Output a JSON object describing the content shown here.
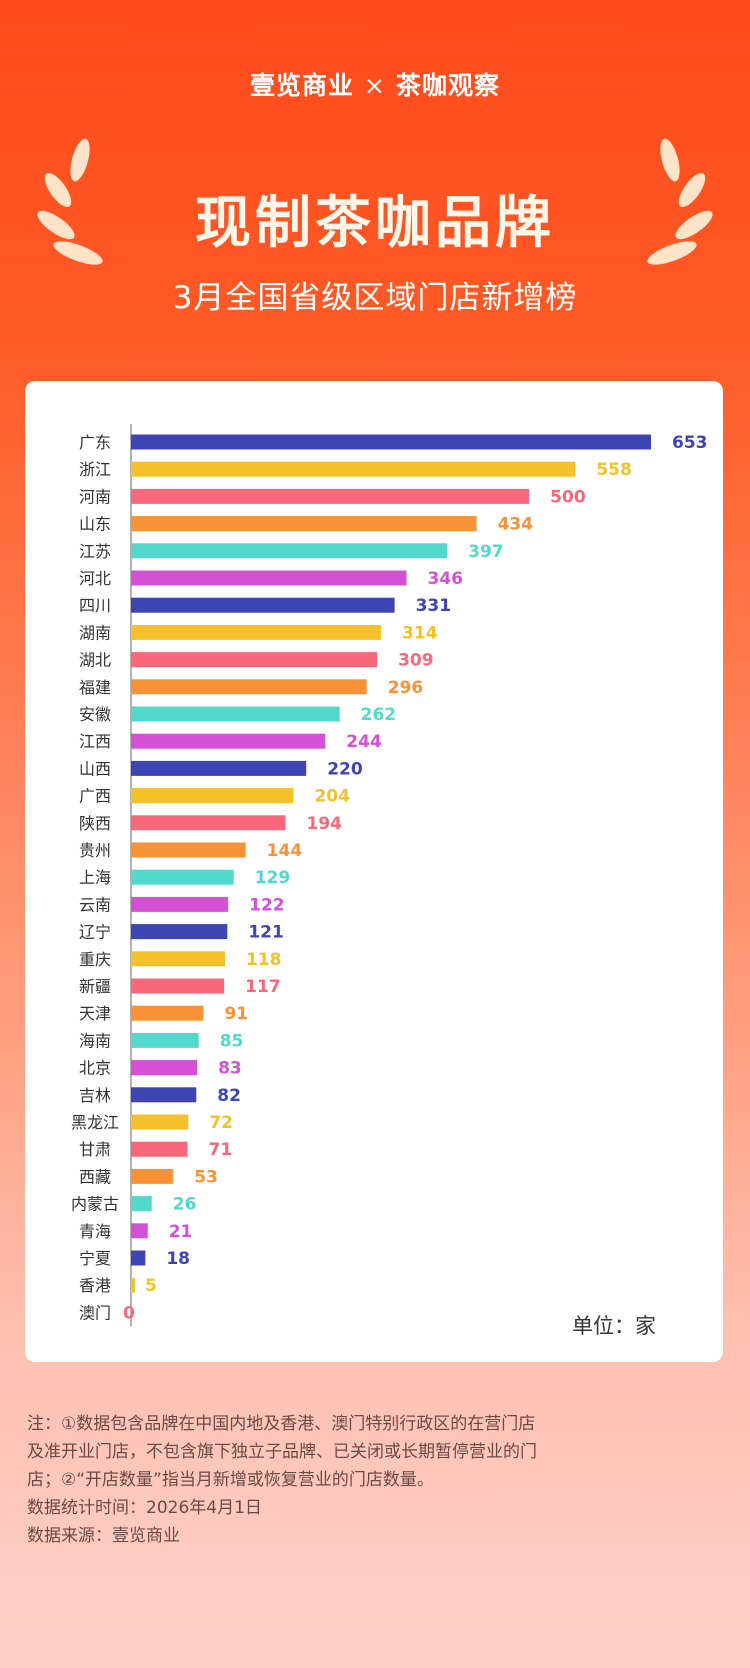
{
  "header": {
    "brand_left": "壹览商业",
    "separator": "×",
    "brand_right": "茶咖观察",
    "title": "现制茶咖品牌",
    "subtitle": "3月全国省级区域门店新增榜"
  },
  "unit_label": "单位：家",
  "notes": [
    "注：①数据包含品牌在中国内地及香港、澳门特别行政区的在营门店及准开业门店，不包含旗下独立子品牌、已关闭或长期暂停营业的门店；②“开店数量”指当月新增或恢复营业的门店数量。",
    "数据统计时间：2026年4月1日",
    "数据来源：壹览商业"
  ],
  "chart_data": {
    "type": "bar",
    "orientation": "horizontal",
    "title": "3月全国省级区域门店新增榜",
    "xlabel": "",
    "ylabel": "",
    "unit": "家",
    "categories": [
      "广东",
      "浙江",
      "河南",
      "山东",
      "江苏",
      "河北",
      "四川",
      "湖南",
      "湖北",
      "福建",
      "安徽",
      "江西",
      "山西",
      "广西",
      "陕西",
      "贵州",
      "上海",
      "云南",
      "辽宁",
      "重庆",
      "新疆",
      "天津",
      "海南",
      "北京",
      "吉林",
      "黑龙江",
      "甘肃",
      "西藏",
      "内蒙古",
      "青海",
      "宁夏",
      "香港",
      "澳门"
    ],
    "values": [
      653,
      558,
      500,
      434,
      397,
      346,
      331,
      314,
      309,
      296,
      262,
      244,
      220,
      204,
      194,
      144,
      129,
      122,
      121,
      118,
      117,
      91,
      85,
      83,
      82,
      72,
      71,
      53,
      26,
      21,
      18,
      5,
      0
    ],
    "colors": [
      "#3d44b4",
      "#f5c12a",
      "#f8677a",
      "#f79236",
      "#52d8cc",
      "#d450d4"
    ],
    "xlim": [
      0,
      653
    ],
    "grid": false
  }
}
